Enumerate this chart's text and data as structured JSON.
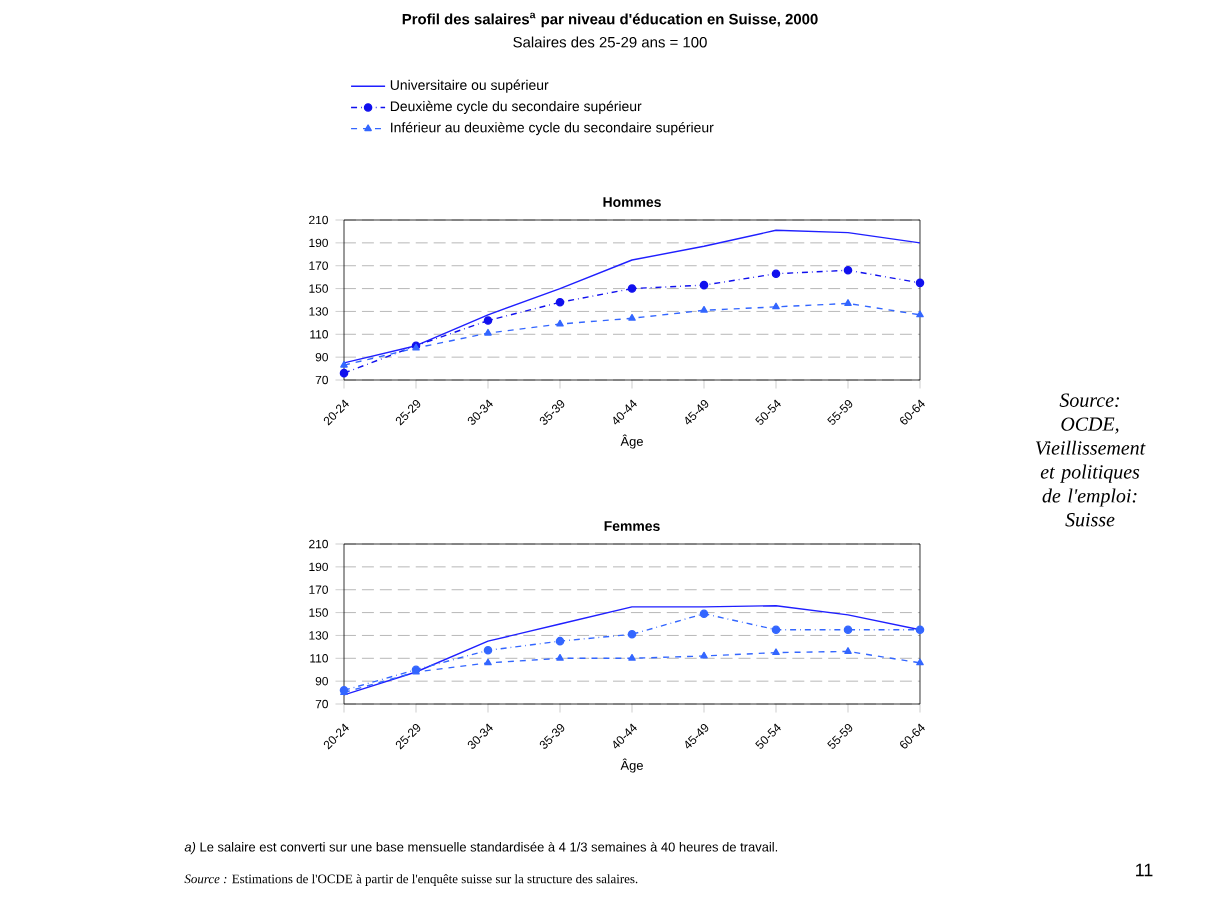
{
  "chart_data": [
    {
      "type": "line",
      "title": "Hommes",
      "xlabel": "Âge",
      "categories": [
        "20-24",
        "25-29",
        "30-34",
        "35-39",
        "40-44",
        "45-49",
        "50-54",
        "55-59",
        "60-64"
      ],
      "ylim": [
        70,
        210
      ],
      "yticks": [
        70,
        90,
        110,
        130,
        150,
        170,
        190,
        210
      ],
      "grid": "y",
      "legend": "top",
      "series": [
        {
          "name": "Universitaire ou supérieur",
          "color": "#1f1fff",
          "line_style": "solid",
          "marker": "none",
          "values": [
            85,
            100,
            127,
            150,
            175,
            187,
            201,
            199,
            190
          ]
        },
        {
          "name": "Deuxième cycle du secondaire supérieur",
          "color": "#1010ee",
          "line_style": "dashdot",
          "marker": "circle",
          "values": [
            76,
            100,
            122,
            138,
            150,
            153,
            163,
            166,
            155
          ]
        },
        {
          "name": "Inférieur au deuxième cycle du secondaire supérieur",
          "color": "#3366ff",
          "line_style": "dashed",
          "marker": "triangle",
          "values": [
            83,
            98,
            111,
            119,
            124,
            131,
            134,
            137,
            127
          ]
        }
      ],
      "annotations": [
        "**Profil des salaires$^{a}$ par niveau d'éducation en Suisse, 2000**",
        "Salaires des 25-29 ans = 100",
        "*Source: OCDE, Vieillissement et politiques de l'emploi: Suisse*"
      ]
    },
    {
      "type": "line",
      "title": "Femmes",
      "xlabel": "Âge",
      "categories": [
        "20-24",
        "25-29",
        "30-34",
        "35-39",
        "40-44",
        "45-49",
        "50-54",
        "55-59",
        "60-64"
      ],
      "ylim": [
        70,
        210
      ],
      "yticks": [
        70,
        90,
        110,
        130,
        150,
        170,
        190,
        210
      ],
      "grid": "y",
      "series": [
        {
          "color": "#1f1fff",
          "line_style": "solid",
          "marker": "none",
          "values": [
            78,
            98,
            125,
            140,
            155,
            155,
            156,
            148,
            135
          ]
        },
        {
          "color": "#3366ff",
          "line_style": "dashdot",
          "marker": "circle",
          "values": [
            82,
            100,
            117,
            125,
            131,
            149,
            135,
            135,
            135
          ]
        },
        {
          "color": "#3366ff",
          "line_style": "dashed",
          "marker": "triangle",
          "values": [
            80,
            98,
            106,
            110,
            110,
            112,
            115,
            116,
            106
          ]
        }
      ],
      "annotations": [
        "*a)* Le salaire est converti sur une base mensuelle standardisée à 4 1/3 semaines à 40 heures de travail.",
        "*Source :* Estimations de l'OCDE à partir de l'enquête suisse sur la structure des salaires.",
        "11"
      ]
    }
  ]
}
